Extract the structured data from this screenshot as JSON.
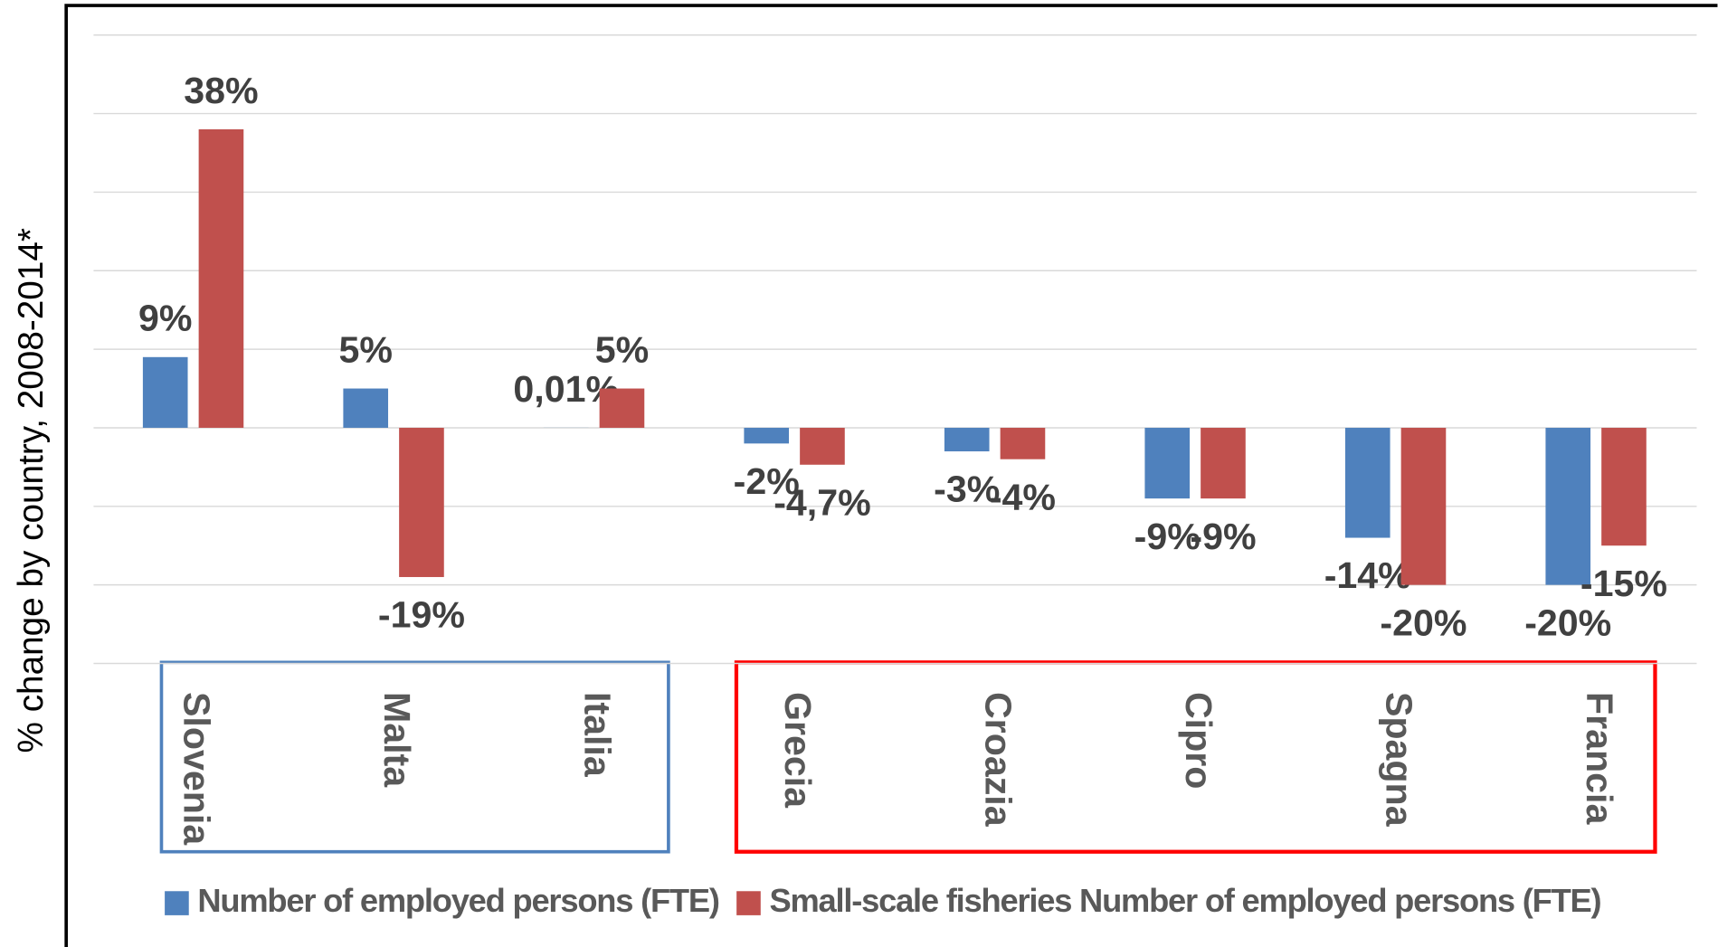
{
  "chart_data": {
    "type": "bar",
    "y_label": "% change by country, 2008-2014*",
    "categories": [
      "Slovenia",
      "Malta",
      "Italia",
      "Grecia",
      "Croazia",
      "Cipro",
      "Spagna",
      "Francia"
    ],
    "series": [
      {
        "name": "Number of employed persons (FTE)",
        "color": "#4f81bd",
        "values": [
          9,
          5,
          0.01,
          -2,
          -3,
          -9,
          -14,
          -20
        ],
        "value_labels": [
          "9%",
          "5%",
          "0,01%",
          "-2%",
          "-3%",
          "-9%",
          "-14%",
          "-20%"
        ]
      },
      {
        "name": "Small-scale fisheries Number of employed persons (FTE)",
        "color": "#c0504d",
        "values": [
          38,
          -19,
          5,
          -4.7,
          -4,
          -9,
          -20,
          -15
        ],
        "value_labels": [
          "38%",
          "-19%",
          "5%",
          "-4,7%",
          "-4%",
          "-9%",
          "-20%",
          "-15%"
        ]
      }
    ],
    "ylim": [
      -30,
      50
    ],
    "yticks": [
      -30,
      -20,
      -10,
      0,
      10,
      20,
      30,
      40,
      50
    ],
    "grid": true,
    "legend": "bottom"
  }
}
